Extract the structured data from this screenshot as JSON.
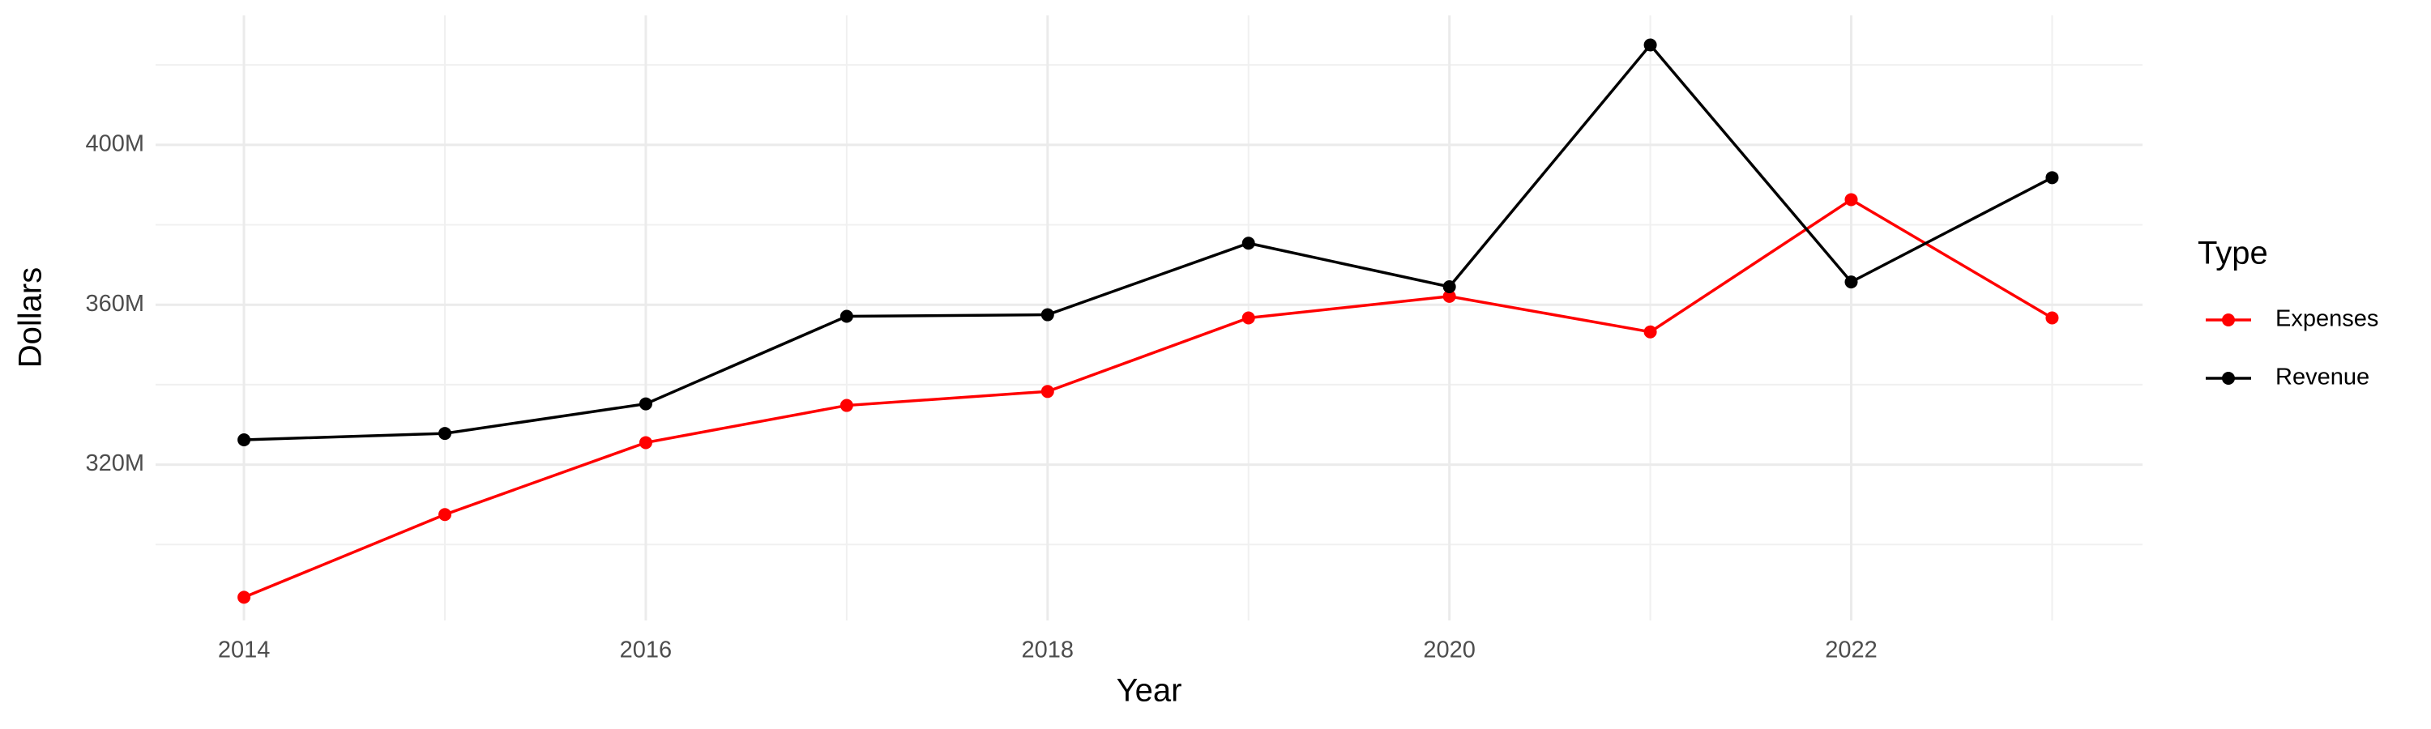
{
  "chart_data": {
    "type": "line",
    "x_label": "Year",
    "y_label": "Dollars",
    "legend_title": "Type",
    "x": [
      2014,
      2015,
      2016,
      2017,
      2018,
      2019,
      2020,
      2021,
      2022,
      2023
    ],
    "series": [
      {
        "name": "Expenses",
        "color": "#ff0000",
        "values": [
          286800000,
          307500000,
          325500000,
          334800000,
          338300000,
          356700000,
          362100000,
          353200000,
          386300000,
          356700000
        ]
      },
      {
        "name": "Revenue",
        "color": "#000000",
        "values": [
          326200000,
          327800000,
          335200000,
          357100000,
          357500000,
          375400000,
          364500000,
          425000000,
          365700000,
          391800000
        ]
      }
    ],
    "xlim": [
      2013.56,
      2023.45
    ],
    "xticks": [
      2014,
      2016,
      2018,
      2020,
      2022
    ],
    "ylim": [
      281000000,
      432400000
    ],
    "yticks": [
      {
        "value": 320000000,
        "label": "320M"
      },
      {
        "value": 360000000,
        "label": "360M"
      },
      {
        "value": 400000000,
        "label": "400M"
      }
    ],
    "grid": true,
    "minor_grid": true,
    "legend": "right"
  }
}
